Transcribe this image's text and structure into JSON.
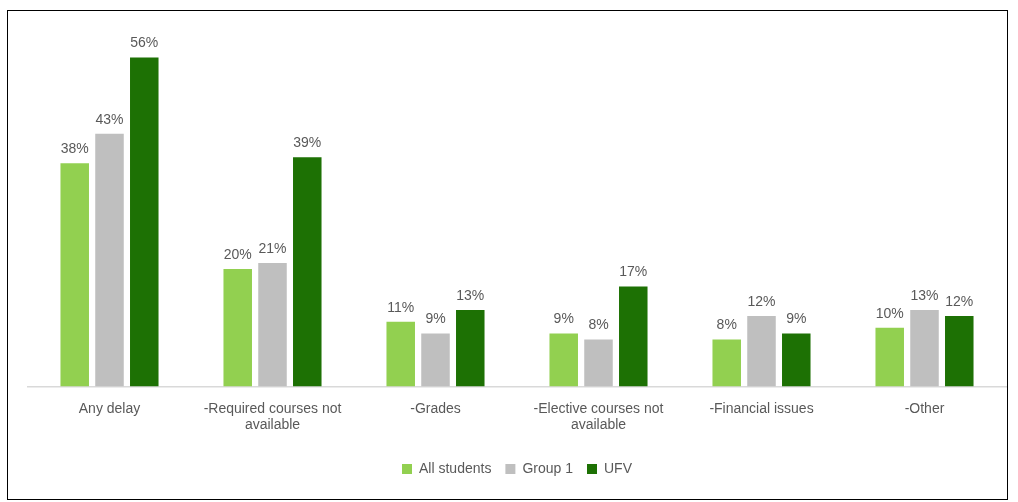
{
  "chart_data": {
    "type": "bar",
    "categories": [
      "Any delay",
      "-Required courses not available",
      "-Grades",
      "-Elective courses not available",
      "-Financial issues",
      "-Other"
    ],
    "series": [
      {
        "name": "All students",
        "color": "#92d050",
        "values": [
          38,
          20,
          11,
          9,
          8,
          10
        ],
        "value_labels": [
          "38%",
          "20%",
          "11%",
          "9%",
          "8%",
          "10%"
        ]
      },
      {
        "name": "Group 1",
        "color": "#bfbfbf",
        "values": [
          43,
          21,
          9,
          8,
          12,
          13
        ],
        "value_labels": [
          "43%",
          "21%",
          "9%",
          "8%",
          "12%",
          "13%"
        ]
      },
      {
        "name": "UFV",
        "color": "#1d7104",
        "values": [
          56,
          39,
          13,
          17,
          9,
          12
        ],
        "value_labels": [
          "56%",
          "39%",
          "13%",
          "17%",
          "9%",
          "12%"
        ]
      }
    ],
    "legend": "bottom"
  }
}
